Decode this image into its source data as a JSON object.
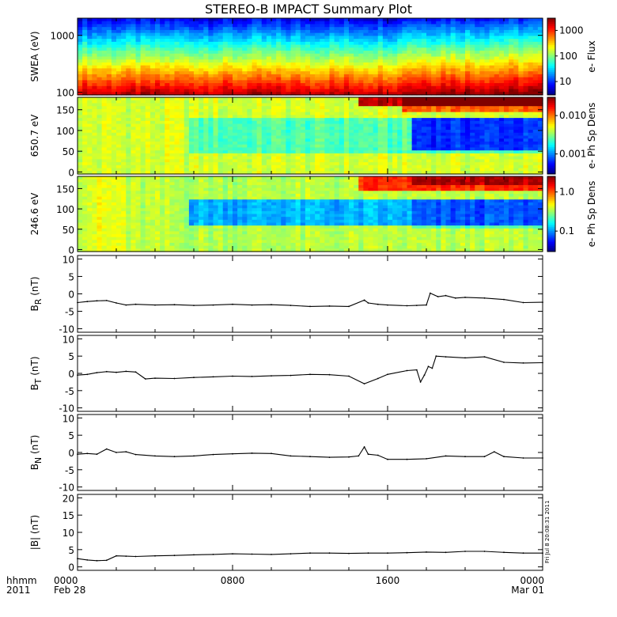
{
  "title": "STEREO-B IMPACT Summary Plot",
  "stamp": "Fri Jul  8 20:08:31 2011",
  "time_axis": {
    "left_label_1": "hhmm",
    "left_label_2": "2011",
    "ticks": [
      {
        "hour": 0,
        "label": "0000",
        "sub": "Feb 28"
      },
      {
        "hour": 8,
        "label": "0800",
        "sub": ""
      },
      {
        "hour": 16,
        "label": "1600",
        "sub": ""
      },
      {
        "hour": 24,
        "label": "0000",
        "sub": "Mar 01"
      }
    ],
    "range_hours": [
      0,
      24
    ]
  },
  "chart_data": [
    {
      "type": "heatmap",
      "name": "swea",
      "ylabel": "SWEA (eV)",
      "yscale": "log",
      "ylim": [
        90,
        2000
      ],
      "yticks": [
        {
          "v": 100,
          "label": "100"
        },
        {
          "v": 1000,
          "label": "1000"
        }
      ],
      "colorbar": {
        "label": "e- Flux",
        "scale": "log",
        "range": [
          3,
          3000
        ],
        "ticks": [
          {
            "v": 10,
            "label": "10"
          },
          {
            "v": 100,
            "label": "100"
          },
          {
            "v": 1000,
            "label": "1000"
          }
        ]
      }
    },
    {
      "type": "heatmap",
      "name": "pad650",
      "ylabel": "650.7 eV",
      "ylim": [
        -5,
        180
      ],
      "yticks": [
        {
          "v": 0,
          "label": "0"
        },
        {
          "v": 50,
          "label": "50"
        },
        {
          "v": 100,
          "label": "100"
        },
        {
          "v": 150,
          "label": "150"
        }
      ],
      "colorbar": {
        "label": "e- Ph Sp Dens",
        "scale": "log",
        "range": [
          0.0003,
          0.03
        ],
        "ticks": [
          {
            "v": 0.001,
            "label": "0.001"
          },
          {
            "v": 0.01,
            "label": "0.010"
          }
        ]
      }
    },
    {
      "type": "heatmap",
      "name": "pad246",
      "ylabel": "246.6 eV",
      "ylim": [
        -5,
        180
      ],
      "yticks": [
        {
          "v": 0,
          "label": "0"
        },
        {
          "v": 50,
          "label": "50"
        },
        {
          "v": 100,
          "label": "100"
        },
        {
          "v": 150,
          "label": "150"
        }
      ],
      "colorbar": {
        "label": "e- Ph Sp Dens",
        "scale": "log",
        "range": [
          0.03,
          2.5
        ],
        "ticks": [
          {
            "v": 0.1,
            "label": "0.1"
          },
          {
            "v": 1.0,
            "label": "1.0"
          }
        ]
      }
    },
    {
      "type": "line",
      "name": "br",
      "ylabel": "B",
      "ylabel_sub": "R",
      "ylabel_unit": " (nT)",
      "ylim": [
        -11,
        11
      ],
      "yticks": [
        {
          "v": -10,
          "label": "-10"
        },
        {
          "v": -5,
          "label": "-5"
        },
        {
          "v": 0,
          "label": "0"
        },
        {
          "v": 5,
          "label": "5"
        },
        {
          "v": 10,
          "label": "10"
        }
      ],
      "x": [
        0,
        0.5,
        1,
        1.5,
        2,
        2.5,
        3,
        4,
        5,
        6,
        7,
        8,
        9,
        10,
        11,
        12,
        13,
        14,
        14.8,
        15,
        15.5,
        16,
        17,
        17.5,
        18,
        18.2,
        18.6,
        19,
        19.5,
        20,
        21,
        22,
        23,
        24
      ],
      "y": [
        -2.5,
        -2.2,
        -2,
        -1.9,
        -2.6,
        -3.2,
        -3.0,
        -3.2,
        -3.1,
        -3.3,
        -3.2,
        -3.0,
        -3.2,
        -3.1,
        -3.3,
        -3.6,
        -3.5,
        -3.6,
        -1.8,
        -2.6,
        -3.0,
        -3.2,
        -3.4,
        -3.3,
        -3.2,
        0.2,
        -0.8,
        -0.5,
        -1.2,
        -1.0,
        -1.2,
        -1.6,
        -2.5,
        -2.4
      ]
    },
    {
      "type": "line",
      "name": "bt",
      "ylabel": "B",
      "ylabel_sub": "T",
      "ylabel_unit": " (nT)",
      "ylim": [
        -11,
        11
      ],
      "yticks": [
        {
          "v": -10,
          "label": "-10"
        },
        {
          "v": -5,
          "label": "-5"
        },
        {
          "v": 0,
          "label": "0"
        },
        {
          "v": 5,
          "label": "5"
        },
        {
          "v": 10,
          "label": "10"
        }
      ],
      "x": [
        0,
        0.5,
        1,
        1.5,
        2,
        2.5,
        3,
        3.5,
        4,
        5,
        6,
        7,
        8,
        9,
        10,
        11,
        12,
        13,
        14,
        14.8,
        15.5,
        16,
        17,
        17.5,
        17.7,
        17.9,
        18.1,
        18.3,
        18.5,
        19,
        20,
        21,
        22,
        23,
        24
      ],
      "y": [
        -0.5,
        -0.3,
        0.2,
        0.5,
        0.3,
        0.6,
        0.4,
        -1.6,
        -1.4,
        -1.5,
        -1.2,
        -1.0,
        -0.8,
        -0.9,
        -0.7,
        -0.6,
        -0.3,
        -0.4,
        -0.8,
        -3.0,
        -1.5,
        -0.3,
        0.8,
        1.0,
        -2.5,
        -0.5,
        2.0,
        1.5,
        5.0,
        4.8,
        4.5,
        4.8,
        3.2,
        3.0,
        3.1
      ]
    },
    {
      "type": "line",
      "name": "bn",
      "ylabel": "B",
      "ylabel_sub": "N",
      "ylabel_unit": " (nT)",
      "ylim": [
        -11,
        11
      ],
      "yticks": [
        {
          "v": -10,
          "label": "-10"
        },
        {
          "v": -5,
          "label": "-5"
        },
        {
          "v": 0,
          "label": "0"
        },
        {
          "v": 5,
          "label": "5"
        },
        {
          "v": 10,
          "label": "10"
        }
      ],
      "x": [
        0,
        0.5,
        1,
        1.5,
        2,
        2.5,
        3,
        4,
        5,
        6,
        7,
        8,
        9,
        10,
        11,
        12,
        13,
        14,
        14.5,
        14.8,
        15,
        15.5,
        16,
        17,
        18,
        19,
        20,
        21,
        21.5,
        22,
        23,
        24
      ],
      "y": [
        -0.5,
        -0.3,
        -0.5,
        1.0,
        0.0,
        0.2,
        -0.6,
        -1.0,
        -1.2,
        -1.0,
        -0.6,
        -0.4,
        -0.2,
        -0.3,
        -1.0,
        -1.2,
        -1.4,
        -1.3,
        -1.0,
        1.6,
        -0.5,
        -0.8,
        -2.0,
        -2.0,
        -1.8,
        -1.0,
        -1.2,
        -1.2,
        0.2,
        -1.2,
        -1.6,
        -1.6
      ]
    },
    {
      "type": "line",
      "name": "bmag",
      "ylabel": "|B| (nT)",
      "ylim": [
        -1,
        21
      ],
      "yticks": [
        {
          "v": 0,
          "label": "0"
        },
        {
          "v": 5,
          "label": "5"
        },
        {
          "v": 10,
          "label": "10"
        },
        {
          "v": 15,
          "label": "15"
        },
        {
          "v": 20,
          "label": "20"
        }
      ],
      "x": [
        0,
        0.5,
        1,
        1.5,
        2,
        2.5,
        3,
        4,
        5,
        6,
        7,
        8,
        9,
        10,
        11,
        12,
        13,
        14,
        15,
        16,
        17,
        18,
        19,
        20,
        21,
        22,
        23,
        24
      ],
      "y": [
        2.4,
        2.0,
        1.8,
        1.9,
        3.2,
        3.1,
        3.0,
        3.2,
        3.3,
        3.5,
        3.6,
        3.8,
        3.7,
        3.6,
        3.8,
        4.0,
        4.0,
        3.9,
        4.0,
        4.0,
        4.1,
        4.3,
        4.2,
        4.5,
        4.5,
        4.2,
        4.0,
        4.0
      ]
    }
  ]
}
